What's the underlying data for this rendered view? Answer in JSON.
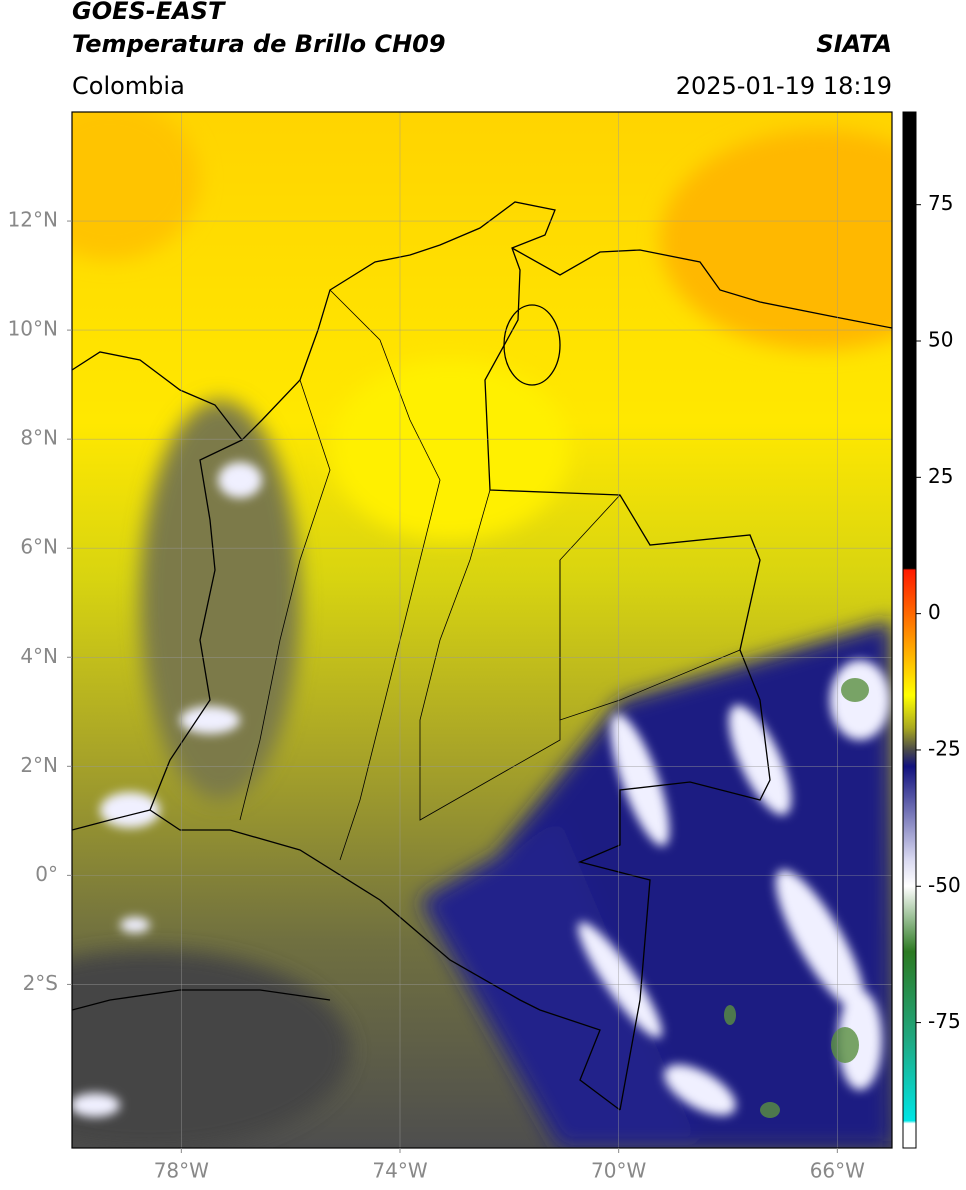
{
  "header": {
    "title": "GOES-EAST",
    "subtitle": "Temperatura de Brillo CH09",
    "source": "SIATA",
    "region": "Colombia",
    "timestamp": "2025-01-19 18:19"
  },
  "map": {
    "xlim": [
      -80,
      -65
    ],
    "ylim": [
      -5,
      14
    ],
    "grid": true,
    "xticks": [
      {
        "value": -78,
        "label": "78°W"
      },
      {
        "value": -74,
        "label": "74°W"
      },
      {
        "value": -70,
        "label": "70°W"
      },
      {
        "value": -66,
        "label": "66°W"
      }
    ],
    "yticks": [
      {
        "value": 12,
        "label": "12°N"
      },
      {
        "value": 10,
        "label": "10°N"
      },
      {
        "value": 8,
        "label": "8°N"
      },
      {
        "value": 6,
        "label": "6°N"
      },
      {
        "value": 4,
        "label": "4°N"
      },
      {
        "value": 2,
        "label": "2°N"
      },
      {
        "value": 0,
        "label": "0°"
      },
      {
        "value": -2,
        "label": "2°S"
      }
    ],
    "colorbar": {
      "lim": [
        -98,
        92
      ],
      "ticks": [
        75,
        50,
        25,
        0,
        -25,
        -50,
        -75
      ],
      "colorscale": [
        {
          "value": 92,
          "color": "#000000"
        },
        {
          "value": 8.3,
          "color": "#000000"
        },
        {
          "value": 8,
          "color": "#ff1a00"
        },
        {
          "value": -5,
          "color": "#ff9a00"
        },
        {
          "value": -15,
          "color": "#ffff00"
        },
        {
          "value": -21,
          "color": "#a8a820"
        },
        {
          "value": -25,
          "color": "#4a4a4a"
        },
        {
          "value": -28,
          "color": "#12127e"
        },
        {
          "value": -45,
          "color": "#d8d8f0"
        },
        {
          "value": -50,
          "color": "#ffffff"
        },
        {
          "value": -62,
          "color": "#2c7a22"
        },
        {
          "value": -78,
          "color": "#20a880"
        },
        {
          "value": -93,
          "color": "#00e5e5"
        },
        {
          "value": -93.5,
          "color": "#ffffff"
        },
        {
          "value": -98,
          "color": "#ffffff"
        }
      ]
    }
  }
}
